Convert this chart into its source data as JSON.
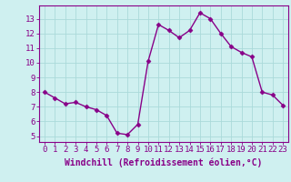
{
  "x": [
    0,
    1,
    2,
    3,
    4,
    5,
    6,
    7,
    8,
    9,
    10,
    11,
    12,
    13,
    14,
    15,
    16,
    17,
    18,
    19,
    20,
    21,
    22,
    23
  ],
  "y": [
    8.0,
    7.6,
    7.2,
    7.3,
    7.0,
    6.8,
    6.4,
    5.2,
    5.1,
    5.8,
    10.1,
    12.6,
    12.2,
    11.7,
    12.2,
    13.4,
    13.0,
    12.0,
    11.1,
    10.7,
    10.4,
    8.0,
    7.8,
    7.1
  ],
  "line_color": "#880088",
  "marker": "D",
  "marker_size": 2.5,
  "line_width": 1.0,
  "bg_color": "#cff0f0",
  "grid_color": "#aadada",
  "xlabel": "Windchill (Refroidissement éolien,°C)",
  "xlabel_color": "#880088",
  "ylabel_ticks": [
    5,
    6,
    7,
    8,
    9,
    10,
    11,
    12,
    13
  ],
  "xlim": [
    -0.5,
    23.5
  ],
  "ylim": [
    4.6,
    13.9
  ],
  "tick_fontsize": 6.5,
  "label_fontsize": 7.0
}
